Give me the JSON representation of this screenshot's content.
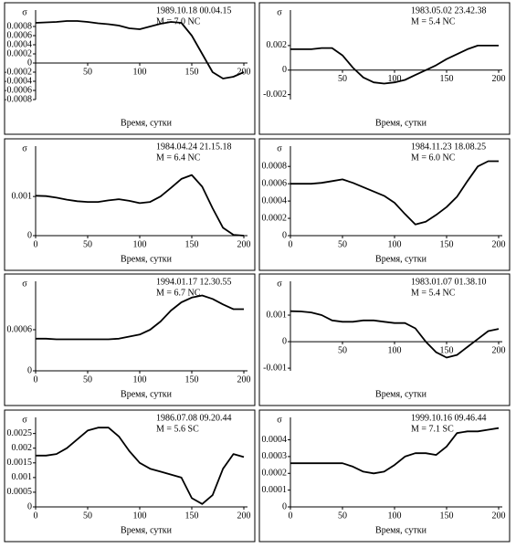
{
  "chart_data": [
    {
      "type": "line",
      "ylabel": "σ",
      "xlabel": "Время, сутки",
      "annotation": [
        "1989.10.18   00.04.15",
        "M = 7.0 NC"
      ],
      "color": "#000000",
      "x": [
        0,
        10,
        20,
        30,
        40,
        50,
        60,
        70,
        80,
        90,
        100,
        110,
        120,
        130,
        140,
        150,
        160,
        170,
        180,
        190,
        200
      ],
      "values": [
        0.00088,
        0.00089,
        0.0009,
        0.00092,
        0.00092,
        0.0009,
        0.00087,
        0.00085,
        0.00082,
        0.00076,
        0.00074,
        0.0008,
        0.00086,
        0.0009,
        0.00088,
        0.0006,
        0.0002,
        -0.0002,
        -0.00034,
        -0.0003,
        -0.0002
      ],
      "xlim": [
        0,
        200
      ],
      "xticks": [
        50,
        100,
        150,
        200
      ],
      "ylim": [
        -0.0008,
        0.001
      ],
      "yticks": [
        0.0008,
        0.0006,
        0.0004,
        0.0002,
        0,
        -0.0002,
        -0.0004,
        -0.0006,
        -0.0008
      ]
    },
    {
      "type": "line",
      "ylabel": "σ",
      "xlabel": "Время, сутки",
      "annotation": [
        "1983.05.02   23.42.38",
        "M = 5.4 NC"
      ],
      "color": "#000000",
      "x": [
        0,
        10,
        20,
        30,
        40,
        50,
        60,
        70,
        80,
        90,
        100,
        110,
        120,
        130,
        140,
        150,
        160,
        170,
        180,
        190,
        200
      ],
      "values": [
        0.0017,
        0.0017,
        0.0017,
        0.0018,
        0.0018,
        0.0012,
        0.0002,
        -0.0006,
        -0.001,
        -0.0011,
        -0.001,
        -0.0008,
        -0.0004,
        0,
        0.0004,
        0.0009,
        0.0013,
        0.0017,
        0.002,
        0.002,
        0.002
      ],
      "xlim": [
        0,
        200
      ],
      "xticks": [
        50,
        100,
        150,
        200
      ],
      "ylim": [
        -0.0024,
        0.0043
      ],
      "yticks": [
        0.002,
        0,
        -0.002
      ]
    },
    {
      "type": "line",
      "ylabel": "σ",
      "xlabel": "Время, сутки",
      "annotation": [
        "1984.04.24   21.15.18",
        "M = 6.4 NC"
      ],
      "color": "#000000",
      "x": [
        0,
        10,
        20,
        30,
        40,
        50,
        60,
        70,
        80,
        90,
        100,
        110,
        120,
        130,
        140,
        150,
        160,
        170,
        180,
        190,
        200
      ],
      "values": [
        0.00102,
        0.00101,
        0.00097,
        0.00092,
        0.00088,
        0.00086,
        0.00086,
        0.0009,
        0.00093,
        0.00089,
        0.00083,
        0.00086,
        0.001,
        0.00122,
        0.00145,
        0.00155,
        0.00125,
        0.0007,
        0.0002,
        2e-05,
        0
      ],
      "xlim": [
        0,
        200
      ],
      "xticks": [
        0,
        50,
        100,
        150,
        200
      ],
      "ylim": [
        0,
        0.0021
      ],
      "yticks": [
        0,
        0.001
      ]
    },
    {
      "type": "line",
      "ylabel": "σ",
      "xlabel": "Время, сутки",
      "annotation": [
        "1984.11.23   18.08.25",
        "M = 6.0 NC"
      ],
      "color": "#000000",
      "x": [
        0,
        10,
        20,
        30,
        40,
        50,
        60,
        70,
        80,
        90,
        100,
        110,
        120,
        130,
        140,
        150,
        160,
        170,
        180,
        190,
        200
      ],
      "values": [
        0.0006,
        0.0006,
        0.0006,
        0.00061,
        0.00063,
        0.00065,
        0.00061,
        0.00056,
        0.00051,
        0.00046,
        0.00038,
        0.00025,
        0.00013,
        0.00016,
        0.00024,
        0.00033,
        0.00045,
        0.00063,
        0.0008,
        0.00086,
        0.00086
      ],
      "xlim": [
        0,
        200
      ],
      "xticks": [
        0,
        50,
        100,
        150,
        200
      ],
      "ylim": [
        0,
        0.00095
      ],
      "yticks": [
        0,
        0.0002,
        0.0004,
        0.0006,
        0.0008
      ]
    },
    {
      "type": "line",
      "ylabel": "σ",
      "xlabel": "Время, сутки",
      "annotation": [
        "1994.01.17   12.30.55",
        "M = 6.7 NC"
      ],
      "color": "#000000",
      "x": [
        0,
        10,
        20,
        30,
        40,
        50,
        60,
        70,
        80,
        90,
        100,
        110,
        120,
        130,
        140,
        150,
        160,
        170,
        180,
        190,
        200
      ],
      "values": [
        0.00047,
        0.00047,
        0.00046,
        0.00046,
        0.00046,
        0.00046,
        0.00046,
        0.00046,
        0.00047,
        0.0005,
        0.00053,
        0.0006,
        0.00072,
        0.00088,
        0.001,
        0.00107,
        0.0011,
        0.00105,
        0.00097,
        0.0009,
        0.0009
      ],
      "xlim": [
        0,
        200
      ],
      "xticks": [
        0,
        50,
        100,
        150,
        200
      ],
      "ylim": [
        0,
        0.0012
      ],
      "yticks": [
        0,
        0.0006
      ]
    },
    {
      "type": "line",
      "ylabel": "σ",
      "xlabel": "Время, сутки",
      "annotation": [
        "1983.01.07   01.38.10",
        "M = 5.4 NC"
      ],
      "color": "#000000",
      "x": [
        0,
        10,
        20,
        30,
        40,
        50,
        60,
        70,
        80,
        90,
        100,
        110,
        120,
        130,
        140,
        150,
        160,
        170,
        180,
        190,
        200
      ],
      "values": [
        0.00115,
        0.00114,
        0.0011,
        0.001,
        0.0008,
        0.00075,
        0.00075,
        0.0008,
        0.0008,
        0.00075,
        0.0007,
        0.0007,
        0.0005,
        0,
        -0.0004,
        -0.0006,
        -0.0005,
        -0.0002,
        0.0001,
        0.0004,
        0.00048
      ],
      "xlim": [
        0,
        200
      ],
      "xticks": [
        50,
        100,
        150,
        200
      ],
      "ylim": [
        -0.0011,
        0.002
      ],
      "yticks": [
        0.001,
        0,
        -0.001
      ]
    },
    {
      "type": "line",
      "ylabel": "σ",
      "xlabel": "Время, сутки",
      "annotation": [
        "1986.07.08   09.20.44",
        "M = 5.6 SC"
      ],
      "color": "#000000",
      "x": [
        0,
        10,
        20,
        30,
        40,
        50,
        60,
        70,
        80,
        90,
        100,
        110,
        120,
        130,
        140,
        150,
        160,
        170,
        180,
        190,
        200
      ],
      "values": [
        0.00175,
        0.00175,
        0.0018,
        0.002,
        0.0023,
        0.0026,
        0.0027,
        0.0027,
        0.0024,
        0.0019,
        0.0015,
        0.0013,
        0.0012,
        0.0011,
        0.001,
        0.0003,
        0.0001,
        0.0004,
        0.0013,
        0.0018,
        0.0017
      ],
      "xlim": [
        0,
        200
      ],
      "xticks": [
        0,
        50,
        100,
        150,
        200
      ],
      "ylim": [
        0,
        0.0028
      ],
      "yticks": [
        0,
        0.0005,
        0.001,
        0.0015,
        0.002,
        0.0025
      ]
    },
    {
      "type": "line",
      "ylabel": "σ",
      "xlabel": "Время, сутки",
      "annotation": [
        "1999.10.16   09.46.44",
        "M = 7.1 SC"
      ],
      "color": "#000000",
      "x": [
        0,
        10,
        20,
        30,
        40,
        50,
        60,
        70,
        80,
        90,
        100,
        110,
        120,
        130,
        140,
        150,
        160,
        170,
        180,
        190,
        200
      ],
      "values": [
        0.00026,
        0.00026,
        0.00026,
        0.00026,
        0.00026,
        0.00026,
        0.00024,
        0.00021,
        0.0002,
        0.00021,
        0.00025,
        0.0003,
        0.00032,
        0.00032,
        0.00031,
        0.00036,
        0.00044,
        0.00045,
        0.00045,
        0.00046,
        0.00047
      ],
      "xlim": [
        0,
        200
      ],
      "xticks": [
        0,
        50,
        100,
        150,
        200
      ],
      "ylim": [
        0,
        0.00049
      ],
      "yticks": [
        0,
        0.0001,
        0.0002,
        0.0003,
        0.0004
      ]
    }
  ]
}
